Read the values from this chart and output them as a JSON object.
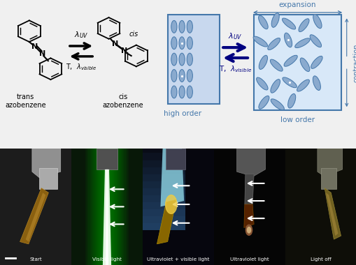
{
  "bg_color": "#f0f0f0",
  "diagram_blue": "#4477aa",
  "box_bg_high": "#c8d8ee",
  "box_bg_low": "#d8e8f8",
  "box_border": "#4477aa",
  "bottom_labels": [
    "Start",
    "Visible light",
    "Ultraviolet + visible light",
    "Ultraviolet light",
    "Light off"
  ],
  "photo_bgs": [
    "#181818",
    "#0a1a08",
    "#08080e",
    "#050505",
    "#101008"
  ],
  "top_labels": {
    "trans_az": "trans\nazobenzene",
    "cis_az": "cis\nazobenzene",
    "high_order": "high order",
    "low_order": "low order",
    "expansion": "expansion",
    "contraction": "contraction"
  }
}
